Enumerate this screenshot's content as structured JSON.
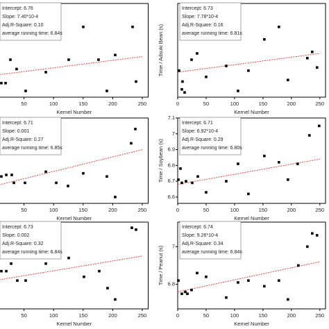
{
  "chart_data": [
    {
      "type": "scatter",
      "xlabel": "Kernel Number",
      "color": "#000000",
      "trend_color": "#e8413c",
      "xlim": [
        0,
        260
      ],
      "ylim": [
        6.6,
        7.2
      ],
      "xticks": [
        50,
        100,
        150,
        200,
        250
      ],
      "x": [
        11.7,
        18.8,
        27,
        37.5,
        52.8,
        86.9,
        125.6,
        150.2,
        176,
        190.1,
        204.2,
        233.6,
        239.4
      ],
      "values": [
        6.69,
        6.69,
        6.84,
        6.78,
        6.64,
        6.76,
        6.84,
        7.05,
        6.84,
        6.64,
        6.87,
        7.05,
        6.7
      ],
      "trend": {
        "x": [
          0,
          250
        ],
        "values": [
          6.74,
          6.86
        ]
      },
      "annotations": [
        "Intercept: 6.76",
        "Slope: 7.40*10-4",
        "Adj.R-Square: 0.10",
        "average running time: 6.84s"
      ]
    },
    {
      "type": "scatter",
      "xlabel": "Kernel Number",
      "ylabel": "Time / Adsuki Bean (s)",
      "color": "#000000",
      "trend_color": "#e8413c",
      "xlim": [
        0,
        260
      ],
      "ylim": [
        6.6,
        7.2
      ],
      "xticks": [
        0,
        50,
        100,
        150,
        200,
        250
      ],
      "x": [
        2.4,
        7.3,
        12.2,
        8.5,
        24.4,
        34.1,
        50,
        85.4,
        106.1,
        124.4,
        152.4,
        178,
        193.9,
        228,
        236.6,
        245.1
      ],
      "values": [
        6.77,
        6.65,
        6.63,
        6.7,
        6.84,
        6.88,
        6.73,
        6.8,
        6.64,
        6.77,
        6.97,
        7.05,
        6.71,
        6.85,
        6.89,
        6.79
      ],
      "trend": {
        "x": [
          0,
          250
        ],
        "values": [
          6.76,
          6.88
        ]
      },
      "annotations": [
        "Intercept: 6.73",
        "Slope: 7.78*10-4",
        "Adj.R-Square: 0.16",
        "average running time: 6.81s"
      ]
    },
    {
      "type": "scatter",
      "xlabel": "Kernel Number",
      "color": "#000000",
      "trend_color": "#e8413c",
      "xlim": [
        0,
        260
      ],
      "ylim": [
        6.56,
        7.1
      ],
      "xticks": [
        50,
        100,
        150,
        200,
        250
      ],
      "x": [
        11.7,
        20,
        29.3,
        32.9,
        51.6,
        86.9,
        104.5,
        124.4,
        150.2,
        190.1,
        204.2,
        231.2,
        238.3
      ],
      "values": [
        6.73,
        6.74,
        6.74,
        6.69,
        6.69,
        6.76,
        6.69,
        6.67,
        6.75,
        6.73,
        6.6,
        6.94,
        7.03
      ],
      "trend": {
        "x": [
          0,
          250
        ],
        "values": [
          6.67,
          6.9
        ]
      },
      "annotations": [
        "Intercept: 6.71",
        "Slope: 0.001",
        "Adj.R-Square: 0.27",
        "average running time: 6.85s"
      ]
    },
    {
      "type": "scatter",
      "xlabel": "Kernel Number",
      "ylabel": "Time / Soybean (s)",
      "color": "#000000",
      "trend_color": "#e8413c",
      "xlim": [
        0,
        260
      ],
      "ylim": [
        6.56,
        7.1
      ],
      "xticks": [
        0,
        50,
        100,
        150,
        200,
        250
      ],
      "yticks": [
        6.6,
        6.7,
        6.8,
        6.9,
        7.0,
        7.1
      ],
      "x": [
        1.2,
        4.9,
        7.3,
        14.6,
        25.6,
        35.4,
        50,
        85.4,
        106.1,
        124.4,
        152.4,
        178,
        193.9,
        211,
        231.7,
        248.8
      ],
      "values": [
        6.71,
        6.78,
        6.69,
        6.7,
        6.69,
        6.73,
        6.63,
        6.7,
        6.81,
        6.62,
        6.86,
        6.82,
        6.71,
        6.81,
        6.99,
        7.05
      ],
      "trend": {
        "x": [
          0,
          250
        ],
        "values": [
          6.68,
          6.84
        ]
      },
      "annotations": [
        "Intercept: 6.71",
        "Slope: 6.92*10-4",
        "Adj.R-Square: 0.29",
        "average running time: 6.80s"
      ]
    },
    {
      "type": "scatter",
      "xlabel": "Kernel Number",
      "color": "#000000",
      "trend_color": "#e8413c",
      "xlim": [
        0,
        260
      ],
      "ylim": [
        6.67,
        7.13
      ],
      "xticks": [
        50,
        100,
        150,
        200,
        250
      ],
      "x": [
        11.7,
        20,
        28.2,
        38.7,
        52.8,
        86.9,
        125.6,
        151.4,
        177.2,
        204.2,
        232.4,
        239.4,
        191.3
      ],
      "values": [
        6.87,
        6.87,
        6.91,
        6.82,
        6.82,
        6.91,
        6.94,
        6.84,
        6.87,
        6.72,
        7.1,
        7.09,
        6.78
      ],
      "trend": {
        "x": [
          0,
          250
        ],
        "values": [
          6.82,
          6.95
        ]
      },
      "annotations": [
        "Intercept: 6.73",
        "Slope: 0.002",
        "Adj.R-Square: 0.32",
        "average running time: 6.84s"
      ]
    },
    {
      "type": "scatter",
      "xlabel": "Kernel Number",
      "ylabel": "Time / Peanut (s)",
      "color": "#000000",
      "trend_color": "#e8413c",
      "xlim": [
        0,
        260
      ],
      "ylim": [
        6.67,
        7.13
      ],
      "xticks": [
        0,
        50,
        100,
        150,
        200,
        250
      ],
      "yticks": [
        6.8,
        7.0
      ],
      "x": [
        1.2,
        7.3,
        13.4,
        17.1,
        24.4,
        34.1,
        50,
        85.4,
        106.1,
        124.4,
        152.4,
        178,
        193.9,
        212.2,
        228,
        236.6,
        245.1
      ],
      "values": [
        6.82,
        6.75,
        6.76,
        6.75,
        6.77,
        6.86,
        6.84,
        6.73,
        6.81,
        6.82,
        6.79,
        6.82,
        6.72,
        6.9,
        7.0,
        7.07,
        7.06
      ],
      "trend": {
        "x": [
          0,
          250
        ],
        "values": [
          6.76,
          6.92
        ]
      },
      "annotations": [
        "Intercept: 6.74",
        "Slope: 9.26*10-4",
        "Adj.R-Square: 0.34",
        "average running time: 6.84s"
      ]
    }
  ]
}
